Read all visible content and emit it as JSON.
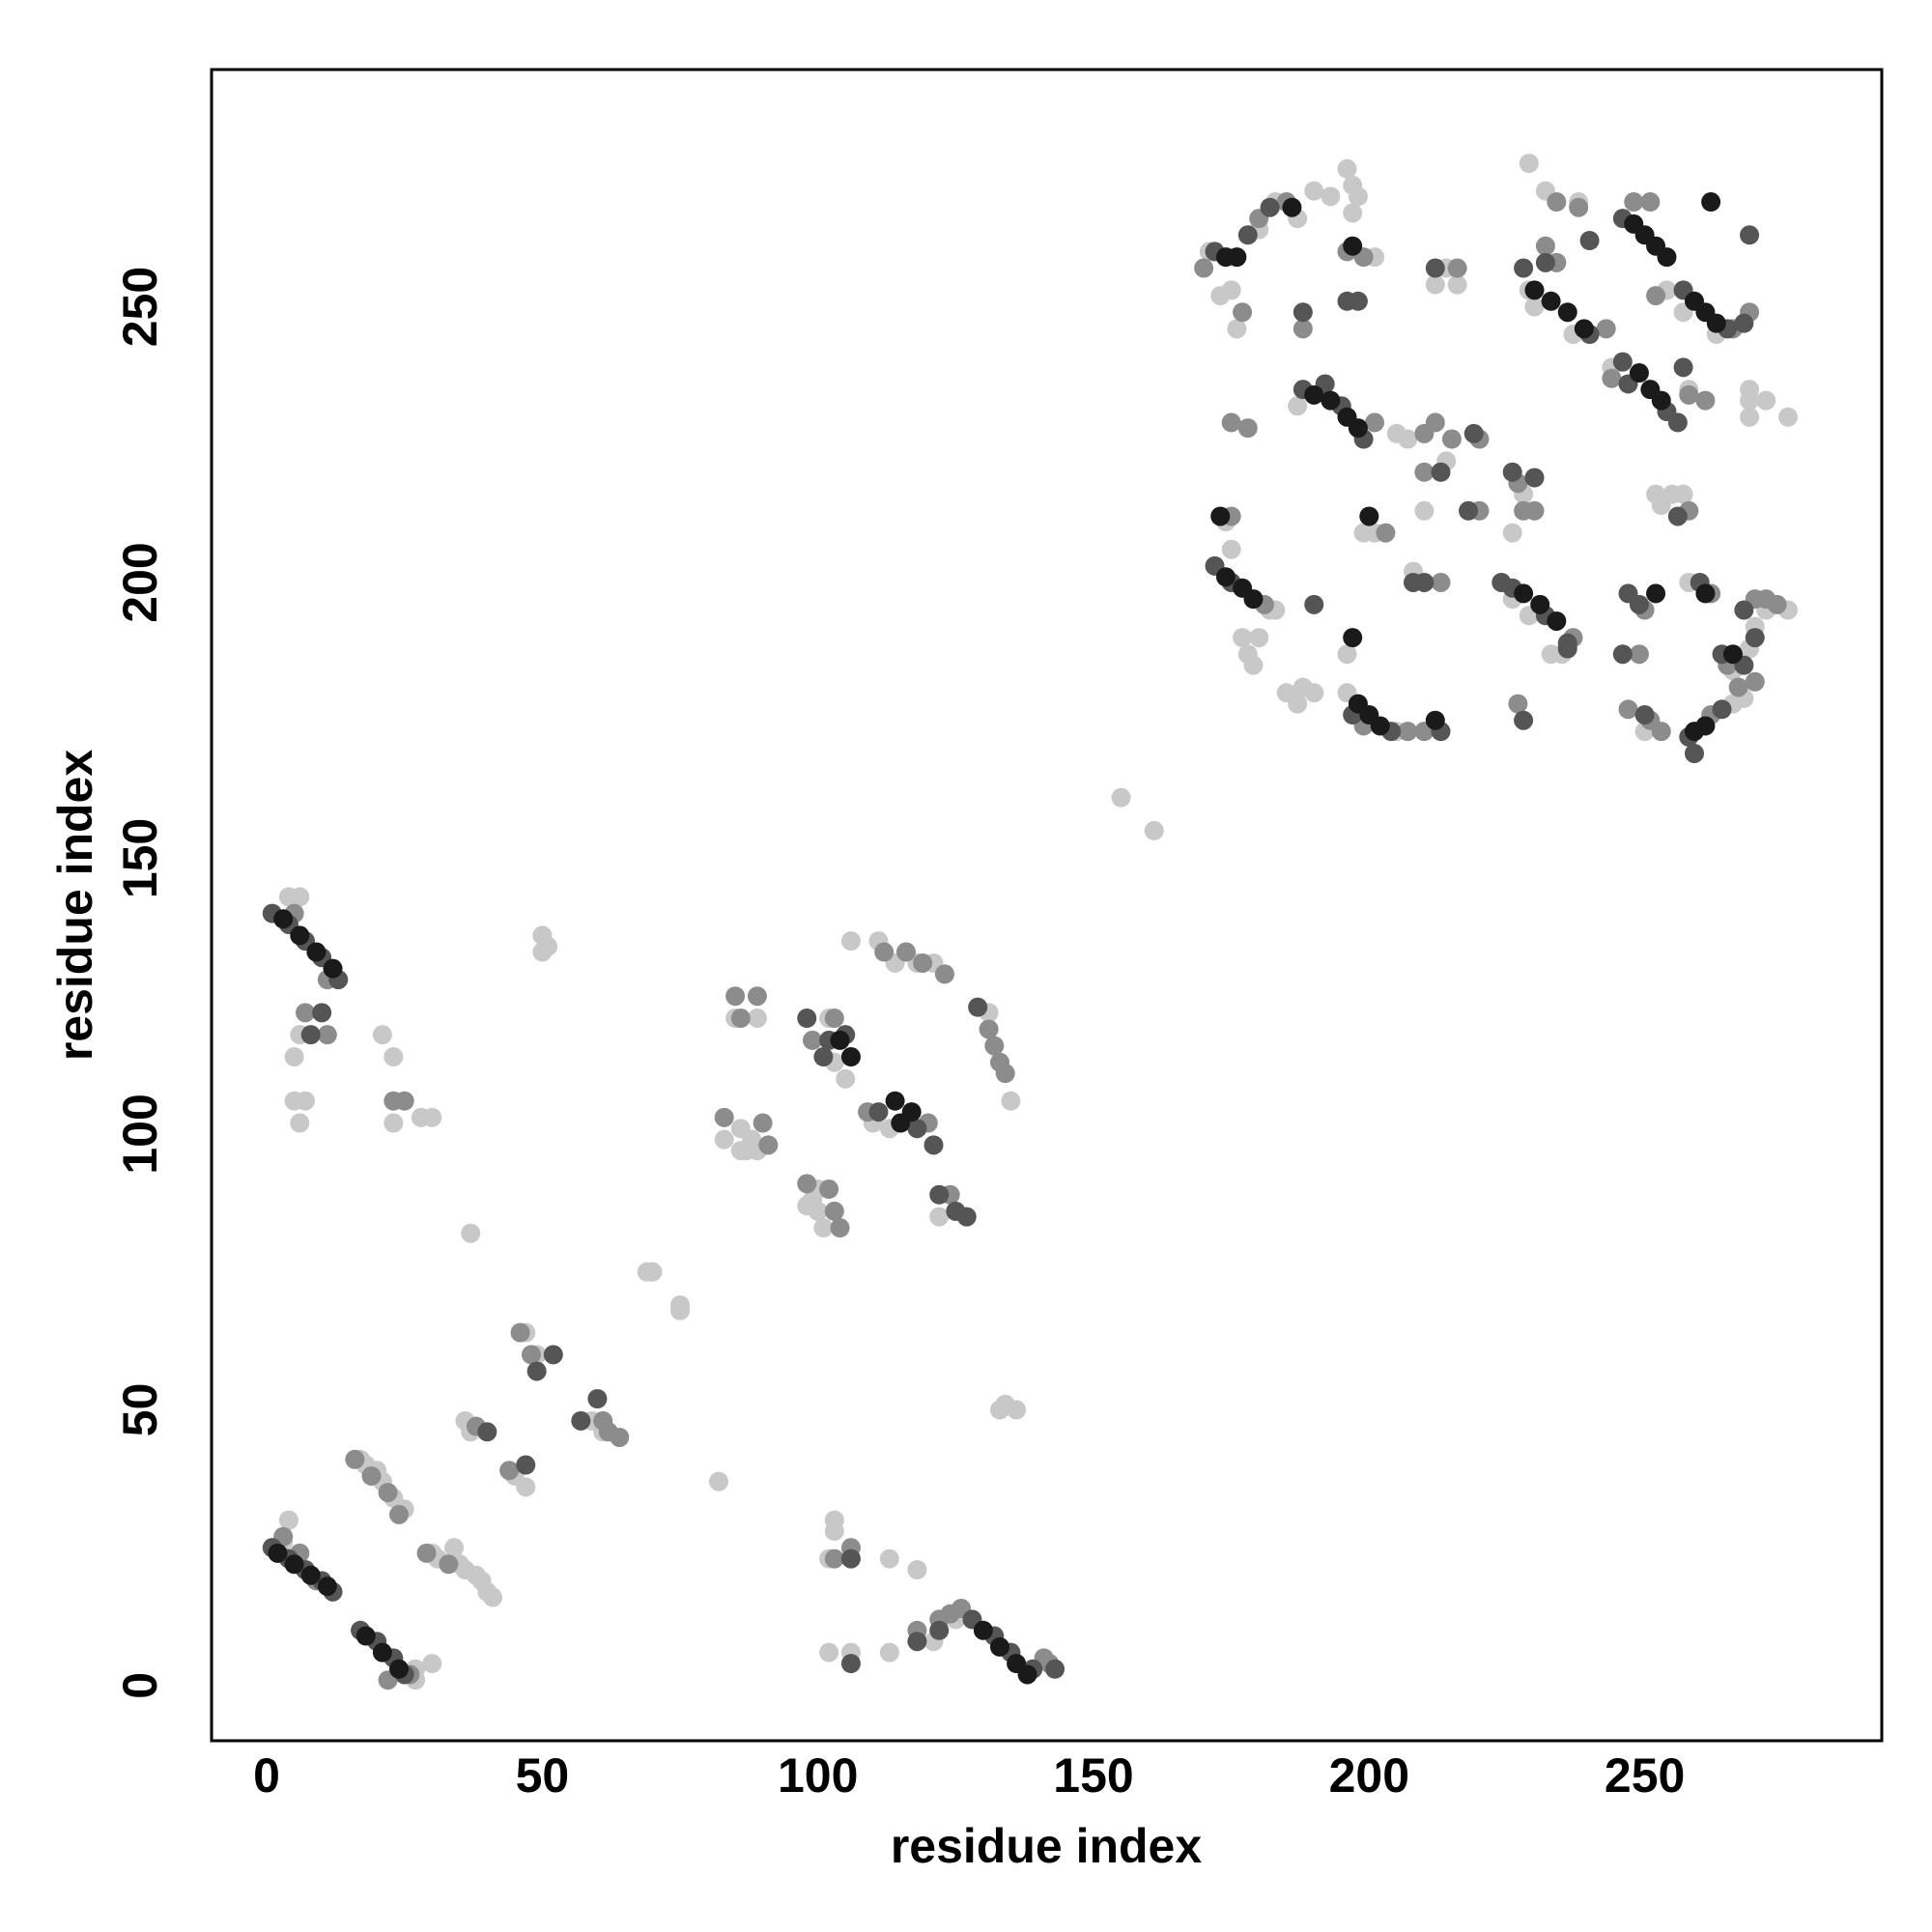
{
  "chart_data": {
    "type": "scatter",
    "xlabel": "residue index",
    "ylabel": "residue index",
    "xlim": [
      -10,
      293
    ],
    "ylim": [
      -10,
      293
    ],
    "xticks": [
      0,
      50,
      100,
      150,
      200,
      250
    ],
    "yticks": [
      0,
      50,
      100,
      150,
      200,
      250
    ],
    "grid": false,
    "series": [
      {
        "color": "#c8c8c8",
        "x": [
          4,
          3,
          17,
          18,
          20,
          21,
          23,
          25,
          30,
          31,
          34,
          35,
          36,
          38,
          39,
          40,
          41,
          27,
          27,
          30,
          125,
          6,
          4,
          6,
          5,
          5,
          7,
          6,
          21,
          23,
          23,
          28,
          30,
          36,
          37,
          45,
          47,
          47,
          49,
          59,
          61,
          37,
          50,
          50,
          51,
          69,
          70,
          75,
          75,
          82,
          102,
          106,
          113,
          103,
          103,
          102,
          113,
          118,
          121,
          133,
          134,
          136,
          85,
          89,
          86,
          87,
          88,
          89,
          83,
          86,
          99,
          100,
          101,
          98,
          100,
          102,
          103,
          105,
          106,
          111,
          114,
          116,
          118,
          121,
          110,
          113,
          122,
          131,
          135,
          155,
          161,
          171,
          173,
          175,
          176,
          180,
          183,
          187,
          190,
          193,
          196,
          197,
          198,
          197,
          201,
          212,
          214,
          216,
          187,
          205,
          207,
          214,
          210,
          174,
          175,
          182,
          183,
          177,
          178,
          179,
          180,
          185,
          187,
          188,
          190,
          196,
          196,
          205,
          208,
          199,
          201,
          226,
          228,
          229,
          232,
          238,
          230,
          229,
          237,
          226,
          229,
          233,
          235,
          244,
          254,
          257,
          263,
          269,
          269,
          272,
          276,
          252,
          253,
          255,
          257,
          258,
          250,
          266,
          268,
          266,
          276,
          272,
          269,
          258,
          270,
          269
        ],
        "values": [
          30,
          26,
          41,
          40,
          39,
          37,
          34,
          32,
          24,
          23,
          25,
          22,
          21,
          20,
          19,
          17,
          16,
          3,
          1,
          4,
          12,
          143,
          143,
          118,
          114,
          106,
          106,
          102,
          118,
          114,
          102,
          103,
          103,
          48,
          46,
          38,
          36,
          64,
          60,
          48,
          46,
          82,
          136,
          133,
          134,
          75,
          75,
          69,
          68,
          37,
          6,
          6,
          6,
          28,
          30,
          23,
          23,
          21,
          8,
          50,
          51,
          50,
          121,
          121,
          97,
          97,
          99,
          97,
          99,
          101,
          88,
          86,
          83,
          87,
          90,
          121,
          113,
          110,
          135,
          135,
          131,
          133,
          131,
          131,
          102,
          101,
          85,
          122,
          106,
          161,
          155,
          260,
          252,
          253,
          246,
          264,
          269,
          266,
          271,
          270,
          275,
          272,
          270,
          267,
          259,
          254,
          257,
          254,
          232,
          227,
          226,
          222,
          213,
          211,
          206,
          195,
          195,
          190,
          187,
          185,
          190,
          180,
          178,
          181,
          180,
          187,
          180,
          173,
          202,
          209,
          209,
          209,
          216,
          276,
          271,
          269,
          250,
          253,
          245,
          197,
          194,
          187,
          187,
          239,
          253,
          249,
          245,
          235,
          233,
          233,
          230,
          216,
          214,
          216,
          216,
          235,
          173,
          184,
          179,
          178,
          195,
          195,
          188,
          200,
          192,
          230
        ]
      },
      {
        "color": "#8c8c8c",
        "x": [
          3,
          6,
          9,
          16,
          19,
          22,
          24,
          29,
          33,
          22,
          26,
          124,
          126,
          141,
          142,
          5,
          11,
          7,
          11,
          23,
          25,
          85,
          89,
          86,
          90,
          91,
          83,
          98,
          102,
          103,
          104,
          103,
          99,
          112,
          116,
          119,
          123,
          109,
          120,
          124,
          131,
          132,
          133,
          134,
          38,
          44,
          46,
          48,
          61,
          62,
          64,
          122,
          118,
          103,
          106,
          170,
          177,
          180,
          185,
          188,
          196,
          199,
          216,
          175,
          178,
          201,
          210,
          212,
          215,
          220,
          210,
          220,
          175,
          181,
          199,
          207,
          210,
          203,
          213,
          227,
          228,
          230,
          237,
          227,
          234,
          238,
          232,
          234,
          243,
          248,
          251,
          244,
          252,
          266,
          269,
          258,
          261,
          258,
          250,
          249,
          247,
          251,
          253,
          262,
          265,
          267,
          272,
          274,
          270,
          270,
          262
        ],
        "values": [
          27,
          24,
          19,
          41,
          38,
          35,
          31,
          24,
          22,
          1,
          2,
          13,
          14,
          5,
          4,
          140,
          128,
          122,
          118,
          106,
          106,
          125,
          125,
          121,
          102,
          98,
          103,
          91,
          90,
          86,
          83,
          121,
          117,
          133,
          133,
          131,
          129,
          104,
          102,
          89,
          119,
          116,
          113,
          111,
          47,
          39,
          64,
          60,
          48,
          46,
          45,
          12,
          10,
          23,
          25,
          257,
          249,
          266,
          269,
          246,
          260,
          259,
          257,
          229,
          228,
          229,
          227,
          229,
          226,
          226,
          220,
          213,
          212,
          196,
          174,
          173,
          173,
          209,
          200,
          218,
          213,
          213,
          190,
          178,
          269,
          268,
          261,
          258,
          246,
          269,
          269,
          237,
          252,
          246,
          249,
          234,
          233,
          213,
          195,
          187,
          177,
          175,
          173,
          176,
          185,
          181,
          197,
          196,
          197,
          182,
          198
        ]
      },
      {
        "color": "#555555",
        "x": [
          1,
          4,
          7,
          10,
          12,
          17,
          20,
          23,
          25,
          128,
          132,
          135,
          139,
          143,
          1,
          4,
          7,
          10,
          13,
          8,
          10,
          98,
          101,
          102,
          105,
          111,
          118,
          121,
          122,
          125,
          127,
          129,
          60,
          57,
          49,
          52,
          40,
          47,
          106,
          106,
          118,
          122,
          172,
          178,
          182,
          188,
          198,
          196,
          212,
          188,
          192,
          195,
          199,
          219,
          213,
          218,
          172,
          175,
          190,
          197,
          204,
          213,
          208,
          210,
          226,
          230,
          224,
          226,
          232,
          236,
          236,
          228,
          232,
          240,
          228,
          246,
          240,
          246,
          247,
          254,
          257,
          265,
          269,
          257,
          256,
          256,
          247,
          249,
          250,
          258,
          264,
          259,
          260,
          268,
          270,
          246,
          264,
          268,
          268
        ],
        "values": [
          25,
          23,
          21,
          19,
          17,
          10,
          8,
          5,
          2,
          12,
          9,
          6,
          3,
          3,
          140,
          138,
          135,
          132,
          128,
          118,
          122,
          121,
          114,
          117,
          118,
          104,
          101,
          98,
          89,
          86,
          85,
          123,
          52,
          48,
          57,
          60,
          46,
          40,
          4,
          23,
          8,
          10,
          260,
          263,
          268,
          249,
          251,
          251,
          257,
          235,
          236,
          232,
          226,
          227,
          220,
          213,
          203,
          200,
          196,
          176,
          173,
          173,
          200,
          200,
          220,
          219,
          200,
          199,
          194,
          189,
          188,
          175,
          258,
          262,
          257,
          266,
          245,
          240,
          236,
          231,
          253,
          246,
          263,
          239,
          229,
          212,
          198,
          196,
          176,
          172,
          177,
          169,
          200,
          185,
          190,
          187,
          187,
          195,
          247
        ]
      },
      {
        "color": "#1a1a1a",
        "x": [
          2,
          5,
          8,
          11,
          18,
          21,
          24,
          130,
          133,
          136,
          138,
          3,
          6,
          9,
          12,
          104,
          106,
          114,
          117,
          115,
          174,
          176,
          186,
          197,
          190,
          193,
          196,
          198,
          174,
          177,
          179,
          198,
          200,
          202,
          228,
          231,
          234,
          230,
          233,
          236,
          239,
          248,
          250,
          252,
          254,
          249,
          251,
          253,
          259,
          261,
          263,
          259,
          261,
          261,
          252,
          262,
          197,
          212,
          173,
          200,
          266
        ],
        "values": [
          24,
          22,
          20,
          18,
          9,
          6,
          3,
          10,
          7,
          4,
          2,
          139,
          136,
          133,
          130,
          117,
          114,
          106,
          104,
          102,
          259,
          259,
          268,
          261,
          234,
          233,
          230,
          228,
          201,
          199,
          197,
          178,
          176,
          174,
          198,
          196,
          193,
          253,
          251,
          249,
          246,
          265,
          263,
          261,
          259,
          238,
          235,
          233,
          251,
          249,
          247,
          173,
          174,
          198,
          198,
          269,
          190,
          175,
          212,
          212,
          187
        ]
      }
    ]
  }
}
